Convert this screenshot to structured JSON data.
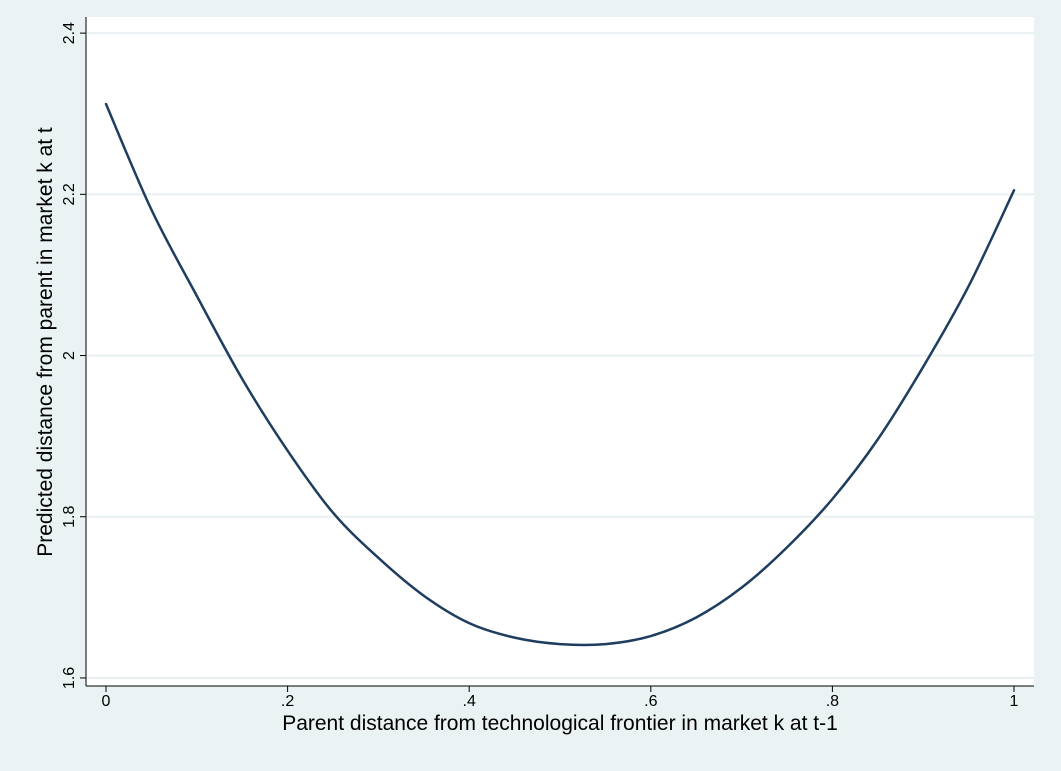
{
  "chart_data": {
    "type": "line",
    "title": "",
    "xlabel": "Parent distance from technological frontier in market k at t-1",
    "ylabel": "Predicted distance from parent in market k at t",
    "xlim": [
      0,
      1
    ],
    "ylim": [
      1.59,
      2.42
    ],
    "x_ticks": [
      0,
      0.2,
      0.4,
      0.6,
      0.8,
      1
    ],
    "x_tick_labels": [
      "0",
      ".2",
      ".4",
      ".6",
      ".8",
      "1"
    ],
    "y_ticks": [
      1.6,
      1.8,
      2.0,
      2.2,
      2.4
    ],
    "y_tick_labels": [
      "1.6",
      "1.8",
      "2",
      "2.2",
      "2.4"
    ],
    "grid": true,
    "legend": "none",
    "series": [
      {
        "x": [
          0,
          0.05,
          0.1,
          0.15,
          0.2,
          0.25,
          0.3,
          0.35,
          0.4,
          0.45,
          0.5,
          0.55,
          0.6,
          0.65,
          0.7,
          0.75,
          0.8,
          0.85,
          0.9,
          0.95,
          1
        ],
        "values": [
          2.312,
          2.181,
          2.074,
          1.971,
          1.882,
          1.805,
          1.749,
          1.702,
          1.668,
          1.65,
          1.642,
          1.642,
          1.652,
          1.675,
          1.712,
          1.762,
          1.822,
          1.896,
          1.986,
          2.086,
          2.205
        ]
      }
    ],
    "colors": {
      "background": "#eaf2f3",
      "plot_background": "#ffffff",
      "line": "#1e3d5f",
      "grid": "#e8f0f2"
    }
  }
}
